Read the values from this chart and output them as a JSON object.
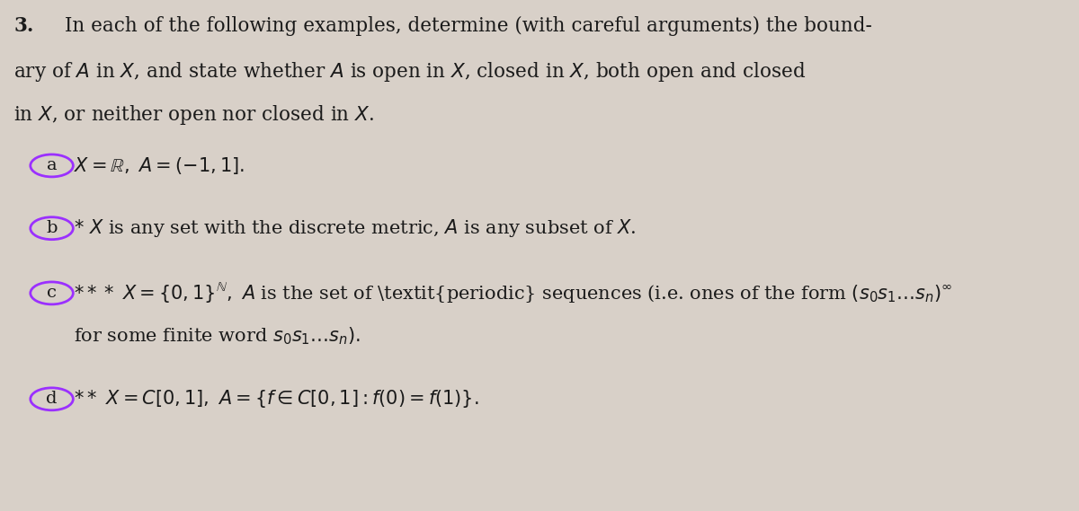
{
  "bg_color": "#d8d0c8",
  "text_color": "#1a1a1a",
  "circle_color": "#9b30ff",
  "fig_width": 12.0,
  "fig_height": 5.69,
  "problem_number": "3.",
  "intro_line1": "In each of the following examples, determine (with careful arguments) the bound-",
  "intro_line2": "ary of $A$ in $X$, and state whether $A$ is open in $X$, closed in $X$, both open and closed",
  "intro_line3": "in $X$, or neither open nor closed in $X$.",
  "item_a_label": "a",
  "item_a_text": "$X = \\mathbb{R},\\ A = (-1, 1].$",
  "item_b_label": "b",
  "item_b_text": "$* \\ X$ is any set with the discrete metric, $A$ is any subset of $X$.",
  "item_c_label": "c",
  "item_c_line1": "$*** \\ X = \\{0, 1\\}^{\\mathbb{N}},\\ A$ is the set of \\textit{periodic} sequences (i.e. ones of the form $(s_0 s_1 \\ldots s_n)^\\infty$",
  "item_c_line2": "for some finite word $s_0 s_1 \\ldots s_n).$",
  "item_d_label": "d",
  "item_d_text": "$** \\ X = C[0, 1],\\ A = \\{f \\in C[0, 1] : f(0) = f(1)\\}.$",
  "main_fontsize": 15.5,
  "sub_fontsize": 15.0
}
